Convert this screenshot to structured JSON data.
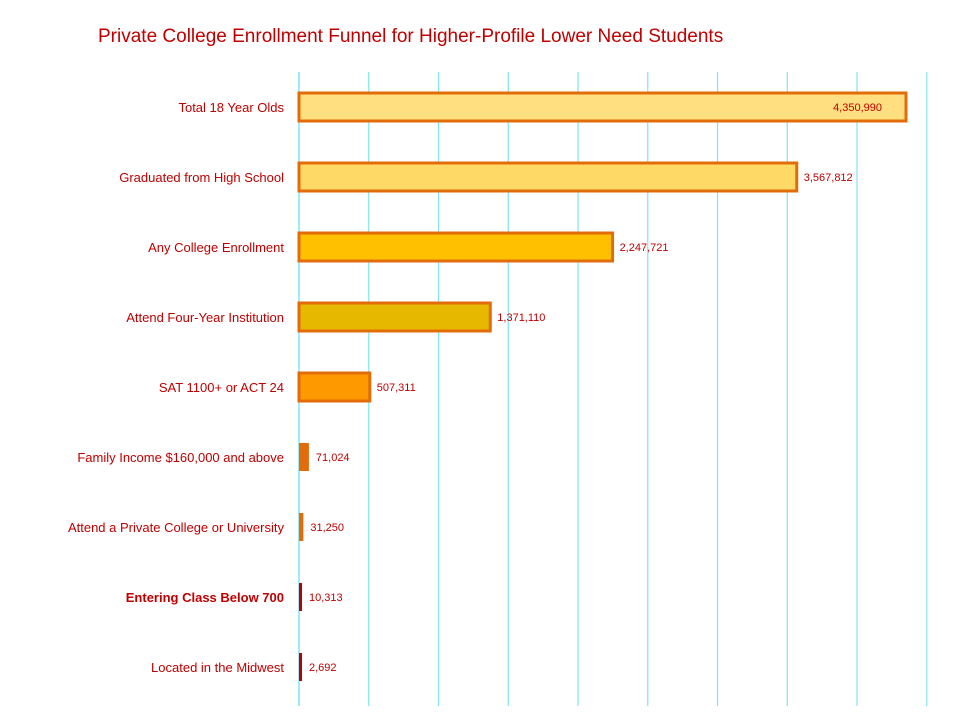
{
  "title": "Private College Enrollment Funnel for Higher-Profile Lower Need Students",
  "chart_data": {
    "type": "bar",
    "orientation": "horizontal",
    "title": "Private College Enrollment Funnel for Higher-Profile Lower Need Students",
    "xlabel": "",
    "ylabel": "",
    "xlim": [
      0,
      4500000
    ],
    "grid": true,
    "legend": "none",
    "categories": [
      "Total 18 Year Olds",
      "Graduated from High School",
      "Any College Enrollment",
      "Attend Four-Year Institution",
      "SAT 1100+ or ACT 24",
      "Family Income $160,000 and above",
      "Attend a Private College or University",
      "Entering Class Below 700",
      "Located in the Midwest"
    ],
    "values": [
      4350990,
      3567812,
      2247721,
      1371110,
      507311,
      71024,
      31250,
      10313,
      2692
    ],
    "value_labels": [
      "4,350,990",
      "3,567,812",
      "2,247,721",
      "1,371,110",
      "507,311",
      "71,024",
      "31,250",
      "10,313",
      "2,692"
    ],
    "bold_categories": [
      "Entering Class Below 700"
    ],
    "colors": {
      "bar_fills": [
        "#ffdf7f",
        "#ffd966",
        "#ffc000",
        "#e6b800",
        "#ff9900",
        "#e36c0a",
        "#e36c0a",
        "#c00000",
        "#c00000"
      ],
      "bar_stroke": "#e36c0a",
      "gridline": "#7fe5f0",
      "text": "#c00000"
    }
  }
}
